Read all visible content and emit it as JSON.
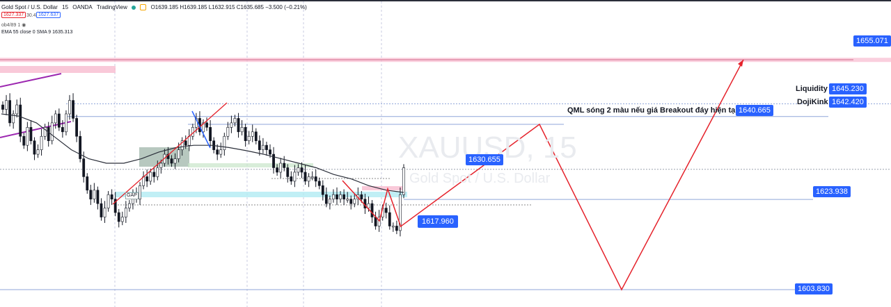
{
  "header": {
    "symbol": "Gold Spot / U.S. Dollar",
    "interval": "15",
    "exchange": "OANDA",
    "platform": "TradingView",
    "ohlc": "O1639.185 H1639.185 L1632.915 C1635.685 −3.500 (−0.21%)",
    "sell_price": "1627.337",
    "spread": "30.4",
    "buy_price": "1627.637",
    "indicator_1": "ob4/89 1",
    "indicator_2_label": "EMA 55 close 0 SMA 9",
    "indicator_2_value": "1635.313"
  },
  "watermark": {
    "ticker": "XAUUSD, 15",
    "name": "Gold Spot / U.S. Dollar"
  },
  "annotations": {
    "liquidity": "Liquidity",
    "dojikink": "DojiKink",
    "qml": "QML sóng 2 màu nếu giá Breakout đáy hiện tại",
    "gap": "GAP"
  },
  "price_labels": {
    "top": "1655.071",
    "liquidity": "1645.230",
    "dojikink": "1642.420",
    "qml": "1640.665",
    "current": "1630.655",
    "level_1623": "1623.938",
    "low": "1617.960",
    "target": "1603.830"
  },
  "colors": {
    "up": "#ffffff",
    "down": "#131722",
    "projection": "#e5222b",
    "label_bg": "#2962ff",
    "zone_pink": "#f8bbd0",
    "zone_cyan": "#b2ebf2",
    "channel": "#9c27b0",
    "ema": "#2a2e39"
  },
  "chart_data": {
    "type": "candlestick",
    "symbol": "XAUUSD",
    "timeframe": "15",
    "ylim": [
      1602,
      1660
    ],
    "key_levels": [
      1655.071,
      1645.23,
      1642.42,
      1640.665,
      1630.655,
      1623.938,
      1617.96,
      1603.83
    ],
    "price_path": [
      1644,
      1646,
      1641,
      1643,
      1645,
      1638,
      1636,
      1640,
      1637,
      1634,
      1635,
      1638,
      1640,
      1637,
      1641,
      1643,
      1640,
      1639,
      1643,
      1646,
      1642,
      1638,
      1633,
      1629,
      1626,
      1624,
      1626,
      1623,
      1620,
      1622,
      1625,
      1624,
      1621,
      1619,
      1620,
      1622,
      1623,
      1625,
      1624,
      1627,
      1629,
      1628,
      1630,
      1629,
      1631,
      1632,
      1634,
      1633,
      1632,
      1633,
      1635,
      1637,
      1636,
      1638,
      1640,
      1642,
      1639,
      1641,
      1640,
      1637,
      1635,
      1634,
      1635,
      1638,
      1640,
      1641,
      1642,
      1639,
      1640,
      1637,
      1638,
      1639,
      1637,
      1635,
      1636,
      1635,
      1634,
      1631,
      1630,
      1632,
      1631,
      1629,
      1628,
      1630,
      1631,
      1630,
      1628,
      1629,
      1629,
      1628,
      1627,
      1625,
      1623,
      1624,
      1625,
      1624,
      1625,
      1624,
      1624,
      1623,
      1624,
      1625,
      1624,
      1622,
      1623,
      1620,
      1618,
      1620,
      1622,
      1621,
      1618,
      1618,
      1617,
      1625,
      1631
    ],
    "ema_path": [
      1643,
      1642.5,
      1641,
      1638,
      1635,
      1633,
      1632,
      1632,
      1633,
      1634.5,
      1635.5,
      1636,
      1636,
      1635.5,
      1634.8,
      1634,
      1633,
      1632,
      1631,
      1629.5,
      1628.5,
      1627,
      1626,
      1625.5
    ],
    "projection_path": [
      1617.96,
      1640.665,
      1603.83,
      1655.071
    ]
  }
}
